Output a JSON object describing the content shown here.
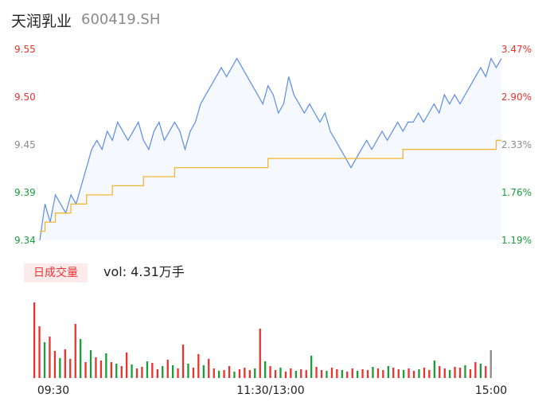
{
  "header": {
    "name": "天润乳业",
    "code": "600419.SH"
  },
  "volume_panel": {
    "tag": "日成交量",
    "text": "vol: 4.31万手"
  },
  "colors": {
    "price_line": "#5b8de8",
    "avg_line": "#f2b632",
    "up": "#e8332e",
    "down": "#1a9e3a",
    "neutral": "#8a8a8a",
    "area_fill": "#f5f8fe"
  },
  "chart_data": [
    {
      "type": "line",
      "title": "",
      "ylim": [
        9.34,
        9.55
      ],
      "y_ticks": [
        "9.55",
        "9.50",
        "9.45",
        "9.39",
        "9.34"
      ],
      "y_ticks_right": [
        "3.47%",
        "2.90%",
        "2.33%",
        "1.76%",
        "1.19%"
      ],
      "x_ticks": [
        "09:30",
        "11:30/13:00",
        "15:00"
      ],
      "series": [
        {
          "values": [
            9.34,
            9.38,
            9.36,
            9.39,
            9.38,
            9.37,
            9.39,
            9.38,
            9.4,
            9.42,
            9.44,
            9.45,
            9.44,
            9.46,
            9.45,
            9.47,
            9.46,
            9.45,
            9.46,
            9.47,
            9.45,
            9.44,
            9.46,
            9.47,
            9.45,
            9.46,
            9.47,
            9.46,
            9.44,
            9.46,
            9.47,
            9.49,
            9.5,
            9.51,
            9.52,
            9.53,
            9.52,
            9.53,
            9.54,
            9.53,
            9.52,
            9.51,
            9.5,
            9.49,
            9.51,
            9.5,
            9.48,
            9.49,
            9.52,
            9.5,
            9.49,
            9.48,
            9.49,
            9.48,
            9.47,
            9.48,
            9.46,
            9.45,
            9.44,
            9.43,
            9.42,
            9.43,
            9.44,
            9.45,
            9.44,
            9.45,
            9.46,
            9.45,
            9.46,
            9.47,
            9.46,
            9.47,
            9.47,
            9.48,
            9.47,
            9.48,
            9.49,
            9.48,
            9.5,
            9.49,
            9.5,
            9.49,
            9.5,
            9.51,
            9.52,
            9.53,
            9.52,
            9.54,
            9.53,
            9.54
          ]
        },
        {
          "values": [
            9.35,
            9.36,
            9.36,
            9.37,
            9.37,
            9.37,
            9.38,
            9.38,
            9.38,
            9.39,
            9.39,
            9.39,
            9.39,
            9.39,
            9.4,
            9.4,
            9.4,
            9.4,
            9.4,
            9.4,
            9.41,
            9.41,
            9.41,
            9.41,
            9.41,
            9.41,
            9.42,
            9.42,
            9.42,
            9.42,
            9.42,
            9.42,
            9.42,
            9.42,
            9.42,
            9.42,
            9.42,
            9.42,
            9.42,
            9.42,
            9.42,
            9.42,
            9.42,
            9.42,
            9.43,
            9.43,
            9.43,
            9.43,
            9.43,
            9.43,
            9.43,
            9.43,
            9.43,
            9.43,
            9.43,
            9.43,
            9.43,
            9.43,
            9.43,
            9.43,
            9.43,
            9.43,
            9.43,
            9.43,
            9.43,
            9.43,
            9.43,
            9.43,
            9.43,
            9.43,
            9.44,
            9.44,
            9.44,
            9.44,
            9.44,
            9.44,
            9.44,
            9.44,
            9.44,
            9.44,
            9.44,
            9.44,
            9.44,
            9.44,
            9.44,
            9.44,
            9.44,
            9.44,
            9.45,
            9.45
          ]
        }
      ]
    },
    {
      "type": "bar",
      "title": "",
      "values": [
        9.5,
        6.5,
        4.5,
        5.2,
        3.4,
        2.5,
        3.6,
        2.4,
        6.8,
        4.9,
        2.0,
        3.5,
        2.6,
        2.2,
        3.1,
        2.0,
        1.8,
        1.5,
        3.2,
        1.7,
        1.2,
        1.4,
        2.1,
        1.9,
        1.1,
        1.5,
        2.3,
        1.6,
        1.2,
        4.2,
        1.8,
        1.3,
        3.0,
        1.6,
        2.4,
        1.2,
        0.9,
        1.0,
        1.5,
        0.8,
        1.1,
        1.3,
        1.0,
        1.2,
        6.2,
        2.1,
        1.5,
        1.0,
        1.3,
        0.8,
        1.2,
        0.9,
        1.1,
        1.0,
        2.8,
        1.4,
        1.0,
        0.9,
        1.3,
        1.1,
        1.0,
        0.8,
        1.2,
        0.9,
        1.1,
        1.0,
        1.4,
        1.2,
        1.0,
        1.5,
        1.3,
        1.1,
        1.0,
        1.2,
        0.9,
        1.1,
        1.3,
        1.0,
        2.2,
        1.5,
        1.2,
        1.0,
        1.4,
        1.3,
        1.6,
        1.1,
        2.0,
        1.8,
        1.5,
        3.5
      ],
      "colors": [
        "up",
        "up",
        "down",
        "up",
        "up",
        "down",
        "up",
        "up",
        "up",
        "down",
        "up",
        "down",
        "up",
        "up",
        "down",
        "up",
        "down",
        "up",
        "up",
        "down",
        "up",
        "up",
        "down",
        "up",
        "up",
        "down",
        "up",
        "down",
        "up",
        "up",
        "down",
        "up",
        "up",
        "down",
        "up",
        "up",
        "down",
        "up",
        "up",
        "down",
        "up",
        "up",
        "up",
        "down",
        "up",
        "down",
        "up",
        "up",
        "down",
        "up",
        "up",
        "down",
        "up",
        "up",
        "down",
        "up",
        "up",
        "down",
        "up",
        "up",
        "down",
        "up",
        "up",
        "down",
        "up",
        "up",
        "down",
        "up",
        "up",
        "down",
        "up",
        "up",
        "down",
        "up",
        "up",
        "down",
        "up",
        "up",
        "down",
        "up",
        "up",
        "down",
        "up",
        "up",
        "down",
        "up",
        "up",
        "down",
        "up",
        "neutral"
      ]
    }
  ]
}
